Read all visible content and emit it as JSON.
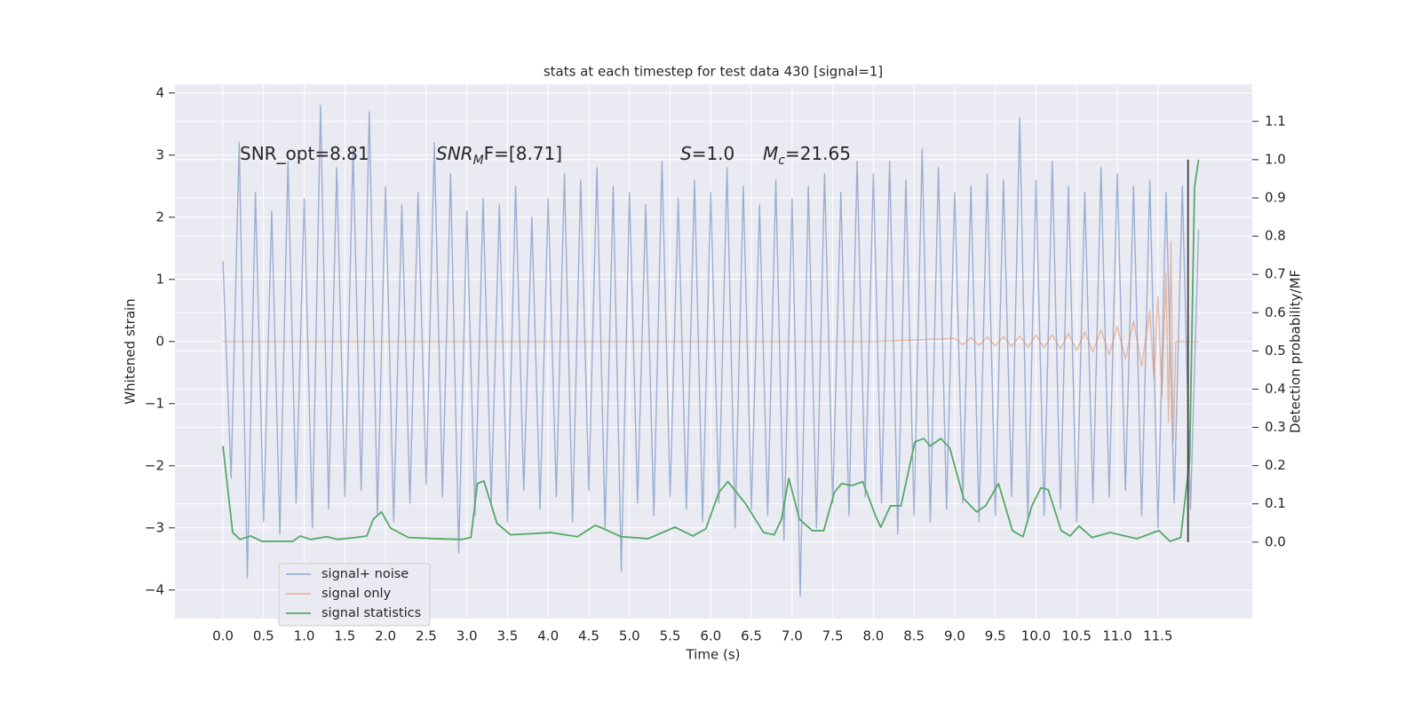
{
  "chart_data": {
    "type": "line",
    "title": "stats at each timestep for test data 430 [signal=1]",
    "x_label": "Time (s)",
    "y_label": "Whitened strain",
    "y2_label": "Detection probability/MF",
    "xlim": [
      -0.59,
      12.66
    ],
    "ylim": [
      -4.46,
      4.14
    ],
    "y2lim": [
      -0.2,
      1.197
    ],
    "xticks": [
      {
        "value": 0,
        "label": "0.0"
      },
      0.5,
      {
        "value": 1,
        "label": "1.0"
      },
      1.5,
      {
        "value": 2,
        "label": "2.0"
      },
      2.5,
      {
        "value": 3,
        "label": "3.0"
      },
      3.5,
      {
        "value": 4,
        "label": "4.0"
      },
      4.5,
      {
        "value": 5,
        "label": "5.0"
      },
      5.5,
      {
        "value": 6,
        "label": "6.0"
      },
      6.5,
      {
        "value": 7,
        "label": "7.0"
      },
      7.5,
      {
        "value": 8,
        "label": "8.0"
      },
      8.5,
      {
        "value": 9,
        "label": "9.0"
      },
      9.5,
      {
        "value": 10,
        "label": "10.0"
      },
      10.5,
      {
        "value": 11,
        "label": "11.0"
      },
      11.5
    ],
    "yticks": [
      {
        "value": -4,
        "label": "−4"
      },
      {
        "value": -3,
        "label": "−3"
      },
      {
        "value": -2,
        "label": "−2"
      },
      {
        "value": -1,
        "label": "−1"
      },
      0,
      1,
      2,
      3,
      4
    ],
    "y2ticks": [
      {
        "value": 0,
        "label": "0.0"
      },
      0.1,
      0.2,
      0.3,
      0.4,
      0.5,
      0.6,
      0.7,
      0.8,
      0.9,
      {
        "value": 1,
        "label": "1.0"
      },
      1.1
    ],
    "grid": true,
    "legend": "lower left",
    "annotations": [
      [
        {
          "text": "SNR_opt=8.81",
          "style": "normal"
        }
      ],
      [
        {
          "text": "SNR",
          "style": "italic"
        },
        {
          "text": "M",
          "style": "sub"
        },
        {
          "text": "F=[8.71]",
          "style": "normal"
        }
      ],
      [
        {
          "text": "S",
          "style": "italic"
        },
        {
          "text": "=1.0",
          "style": "normal"
        }
      ],
      [
        {
          "text": "M",
          "style": "italic"
        },
        {
          "text": "c",
          "style": "sub"
        },
        {
          "text": "=21.65",
          "style": "normal"
        }
      ]
    ],
    "vline": {
      "x": 11.87,
      "y2": [
        0,
        1
      ],
      "color": "#404040"
    },
    "series": [
      {
        "name": "signal+ noise",
        "color": "#4c72b0",
        "alpha": 0.5,
        "axis": "y",
        "x": [
          0,
          0.1,
          0.2,
          0.3,
          0.4,
          0.5,
          0.6,
          0.7,
          0.8,
          0.9,
          1,
          1.1,
          1.2,
          1.3,
          1.4,
          1.5,
          1.6,
          1.7,
          1.8,
          1.9,
          2,
          2.1,
          2.2,
          2.3,
          2.4,
          2.5,
          2.6,
          2.7,
          2.8,
          2.9,
          3,
          3.1,
          3.2,
          3.3,
          3.4,
          3.5,
          3.6,
          3.7,
          3.8,
          3.9,
          4,
          4.1,
          4.2,
          4.3,
          4.4,
          4.5,
          4.6,
          4.7,
          4.8,
          4.9,
          5,
          5.1,
          5.2,
          5.3,
          5.4,
          5.5,
          5.6,
          5.7,
          5.8,
          5.9,
          6,
          6.1,
          6.2,
          6.3,
          6.4,
          6.5,
          6.6,
          6.7,
          6.8,
          6.9,
          7,
          7.1,
          7.2,
          7.3,
          7.4,
          7.5,
          7.6,
          7.7,
          7.8,
          7.9,
          8,
          8.1,
          8.2,
          8.3,
          8.4,
          8.5,
          8.6,
          8.7,
          8.8,
          8.9,
          9,
          9.1,
          9.2,
          9.3,
          9.4,
          9.5,
          9.6,
          9.7,
          9.8,
          9.9,
          10,
          10.1,
          10.2,
          10.3,
          10.4,
          10.5,
          10.6,
          10.7,
          10.8,
          10.9,
          11,
          11.1,
          11.2,
          11.3,
          11.4,
          11.5,
          11.6,
          11.7,
          11.8,
          11.9,
          12
        ],
        "values": [
          1.3,
          -2.2,
          3.2,
          -3.8,
          2.4,
          -2.9,
          2.1,
          -3.1,
          2.9,
          -2.6,
          2.3,
          -3.0,
          3.8,
          -2.7,
          2.8,
          -2.5,
          3.1,
          -2.4,
          3.7,
          -2.8,
          2.5,
          -2.9,
          2.2,
          -2.6,
          2.4,
          -2.3,
          3.2,
          -2.5,
          2.7,
          -3.4,
          2.1,
          -2.8,
          2.3,
          -2.6,
          2.2,
          -2.9,
          2.5,
          -2.4,
          2.0,
          -2.7,
          2.3,
          -2.5,
          2.7,
          -2.9,
          2.6,
          -2.4,
          2.8,
          -3.0,
          2.5,
          -3.7,
          2.4,
          -2.6,
          2.2,
          -2.8,
          2.9,
          -2.5,
          2.3,
          -2.7,
          2.6,
          -2.9,
          2.4,
          -2.6,
          2.8,
          -3.0,
          2.5,
          -2.7,
          2.2,
          -2.8,
          2.6,
          -3.2,
          2.3,
          -4.1,
          2.5,
          -3.0,
          2.7,
          -2.6,
          2.4,
          -2.8,
          2.9,
          -2.5,
          2.7,
          -2.6,
          2.9,
          -3.1,
          2.6,
          -2.8,
          3.1,
          -2.9,
          2.8,
          -2.7,
          2.4,
          -2.6,
          2.5,
          -2.9,
          2.7,
          -2.8,
          2.6,
          -2.5,
          3.6,
          -2.9,
          2.6,
          -2.8,
          2.9,
          -2.7,
          2.5,
          -2.9,
          2.4,
          -2.6,
          2.8,
          -2.5,
          2.7,
          -2.4,
          2.5,
          -2.8,
          2.6,
          -3.0,
          2.4,
          -2.6,
          2.5,
          -2.7,
          1.8
        ]
      },
      {
        "name": "signal only",
        "color": "#dd8452",
        "alpha": 0.5,
        "axis": "y",
        "x": [
          0,
          2,
          4,
          6,
          8,
          9,
          9.1,
          9.2,
          9.3,
          9.4,
          9.5,
          9.6,
          9.7,
          9.8,
          9.9,
          10,
          10.1,
          10.2,
          10.3,
          10.4,
          10.5,
          10.6,
          10.7,
          10.8,
          10.9,
          11,
          11.1,
          11.2,
          11.3,
          11.4,
          11.45,
          11.5,
          11.55,
          11.6,
          11.63,
          11.66,
          11.69,
          11.72,
          12
        ],
        "values": [
          0,
          0,
          0,
          0,
          0,
          0.05,
          -0.05,
          0.06,
          -0.06,
          0.07,
          -0.07,
          0.08,
          -0.08,
          0.09,
          -0.09,
          0.1,
          -0.1,
          0.11,
          -0.12,
          0.13,
          -0.14,
          0.15,
          -0.17,
          0.19,
          -0.21,
          0.24,
          -0.28,
          0.33,
          -0.4,
          0.5,
          -0.6,
          0.72,
          -0.88,
          1.1,
          -1.3,
          1.6,
          -1.6,
          0,
          0
        ]
      },
      {
        "name": "signal statistics",
        "color": "#55a868",
        "alpha": 1,
        "axis": "y2",
        "x": [
          0,
          0.12,
          0.21,
          0.34,
          0.48,
          0.86,
          0.95,
          1.08,
          1.28,
          1.41,
          1.63,
          1.77,
          1.85,
          1.95,
          2.06,
          2.28,
          2.61,
          2.94,
          3.05,
          3.13,
          3.21,
          3.37,
          3.54,
          4.03,
          4.36,
          4.58,
          4.68,
          4.9,
          5.23,
          5.56,
          5.78,
          5.94,
          6.1,
          6.21,
          6.43,
          6.65,
          6.78,
          6.87,
          6.96,
          7.09,
          7.25,
          7.39,
          7.52,
          7.61,
          7.74,
          7.87,
          8.02,
          8.09,
          8.21,
          8.34,
          8.51,
          8.62,
          8.7,
          8.83,
          8.94,
          9.11,
          9.27,
          9.38,
          9.54,
          9.71,
          9.84,
          9.95,
          10.06,
          10.15,
          10.31,
          10.42,
          10.53,
          10.69,
          10.91,
          11.24,
          11.51,
          11.65,
          11.78,
          11.89,
          11.95,
          12
        ],
        "values": [
          0.251,
          0.025,
          0.007,
          0.016,
          0.002,
          0.002,
          0.016,
          0.007,
          0.014,
          0.007,
          0.012,
          0.016,
          0.06,
          0.079,
          0.037,
          0.012,
          0.009,
          0.007,
          0.012,
          0.153,
          0.16,
          0.049,
          0.019,
          0.025,
          0.014,
          0.044,
          0.035,
          0.014,
          0.009,
          0.039,
          0.016,
          0.035,
          0.13,
          0.158,
          0.1,
          0.025,
          0.019,
          0.06,
          0.167,
          0.06,
          0.03,
          0.03,
          0.13,
          0.153,
          0.148,
          0.158,
          0.072,
          0.039,
          0.095,
          0.095,
          0.262,
          0.271,
          0.251,
          0.271,
          0.246,
          0.114,
          0.079,
          0.095,
          0.153,
          0.03,
          0.014,
          0.095,
          0.142,
          0.137,
          0.03,
          0.016,
          0.042,
          0.012,
          0.025,
          0.009,
          0.03,
          0.002,
          0.012,
          0.216,
          0.928,
          1
        ]
      }
    ]
  }
}
